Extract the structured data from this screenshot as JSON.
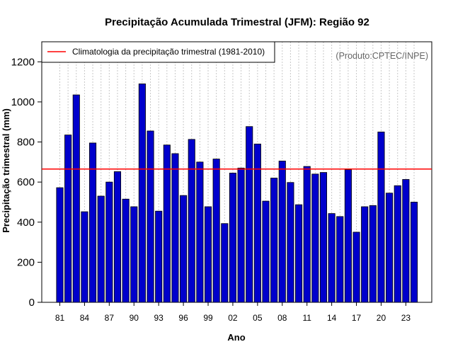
{
  "chart_data": {
    "type": "bar",
    "title": "Precipitação Acumulada Trimestral (JFM): Região 92",
    "xlabel": "Ano",
    "ylabel": "Precipitação trimestral (mm)",
    "credit": "(Produto:CPTEC/INPE)",
    "ylim": [
      0,
      1300
    ],
    "yticks": [
      0,
      200,
      400,
      600,
      800,
      1000,
      1200
    ],
    "xtick_labels": [
      "81",
      "84",
      "87",
      "90",
      "93",
      "96",
      "99",
      "02",
      "05",
      "08",
      "11",
      "14",
      "17",
      "20",
      "23"
    ],
    "categories": [
      "1981",
      "1982",
      "1983",
      "1984",
      "1985",
      "1986",
      "1987",
      "1988",
      "1989",
      "1990",
      "1991",
      "1992",
      "1993",
      "1994",
      "1995",
      "1996",
      "1997",
      "1998",
      "1999",
      "2000",
      "2001",
      "2002",
      "2003",
      "2004",
      "2005",
      "2006",
      "2007",
      "2008",
      "2009",
      "2010",
      "2011",
      "2012",
      "2013",
      "2014",
      "2015",
      "2016",
      "2017",
      "2018",
      "2019",
      "2020",
      "2021",
      "2022",
      "2023",
      "2024"
    ],
    "values": [
      572,
      835,
      1035,
      452,
      795,
      530,
      600,
      652,
      515,
      477,
      1090,
      855,
      455,
      785,
      742,
      533,
      813,
      700,
      477,
      715,
      393,
      645,
      670,
      877,
      790,
      505,
      620,
      705,
      598,
      487,
      678,
      640,
      648,
      443,
      428,
      662,
      350,
      477,
      483,
      850,
      545,
      582,
      613,
      500
    ],
    "bar_color": "#0000cc",
    "reference_line": {
      "label": "Climatologia da precipitação trimestral (1981-2010)",
      "value": 665,
      "color": "#ff0000"
    },
    "legend_position": "top-left",
    "grid": "vertical dotted"
  }
}
